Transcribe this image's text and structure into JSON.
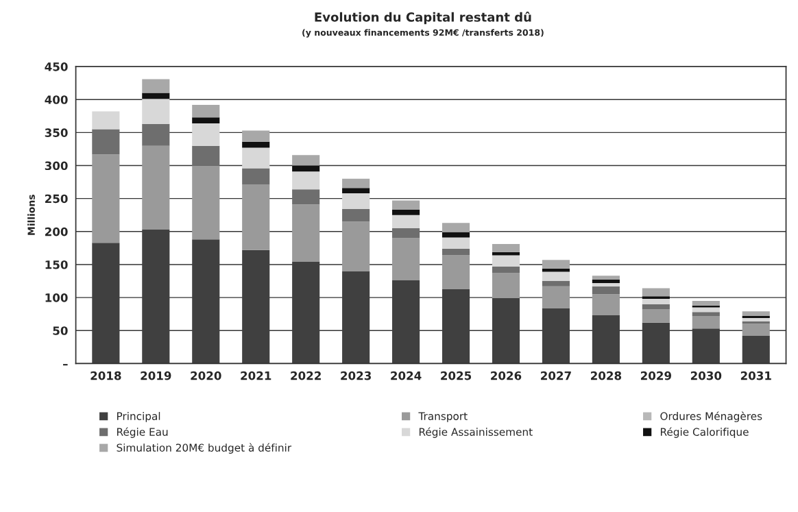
{
  "chart_data": {
    "type": "bar",
    "title": "Evolution du Capital restant dû",
    "subtitle": "(y nouveaux financements 92M€ /transferts 2018)",
    "ylabel": "Millions",
    "categories": [
      "2018",
      "2019",
      "2020",
      "2021",
      "2022",
      "2023",
      "2024",
      "2025",
      "2026",
      "2027",
      "2028",
      "2029",
      "2030",
      "2031"
    ],
    "stacked": true,
    "series": [
      {
        "name": "Principal",
        "color": "#404040",
        "values": [
          183,
          203,
          188,
          172,
          154,
          140,
          126,
          113,
          99,
          84,
          73,
          62,
          53,
          42
        ]
      },
      {
        "name": "Transport",
        "color": "#9a9a9a",
        "values": [
          134,
          127,
          112,
          99,
          87,
          75,
          64,
          51,
          38,
          33,
          32,
          20,
          19,
          18
        ]
      },
      {
        "name": "Ordures Ménagères",
        "color": "#b8b8b8",
        "values": [
          0,
          0,
          0,
          0,
          0,
          0,
          0,
          0,
          0,
          0,
          0,
          0,
          0,
          0
        ]
      },
      {
        "name": "Régie Eau",
        "color": "#6e6e6e",
        "values": [
          38,
          33,
          30,
          25,
          23,
          19,
          15,
          10,
          10,
          8,
          12,
          8,
          6,
          4
        ]
      },
      {
        "name": "Régie Assainissement",
        "color": "#d8d8d8",
        "values": [
          27,
          38,
          34,
          31,
          27,
          24,
          20,
          17,
          17,
          14,
          5,
          8,
          7,
          5
        ]
      },
      {
        "name": "Régie Calorifique",
        "color": "#111111",
        "values": [
          0,
          9,
          9,
          9,
          9,
          8,
          8,
          8,
          5,
          5,
          5,
          4,
          3,
          3
        ]
      },
      {
        "name": "Simulation 20M€ budget à définir",
        "color": "#a8a8a8",
        "values": [
          0,
          21,
          19,
          17,
          16,
          14,
          14,
          14,
          12,
          13,
          6,
          12,
          7,
          7
        ]
      }
    ],
    "ylim": [
      0,
      450
    ],
    "yticks": [
      {
        "value": 0,
        "label": "–"
      },
      50,
      100,
      150,
      200,
      250,
      300,
      350,
      400,
      450
    ],
    "grid": "y",
    "legend": "bottom"
  }
}
